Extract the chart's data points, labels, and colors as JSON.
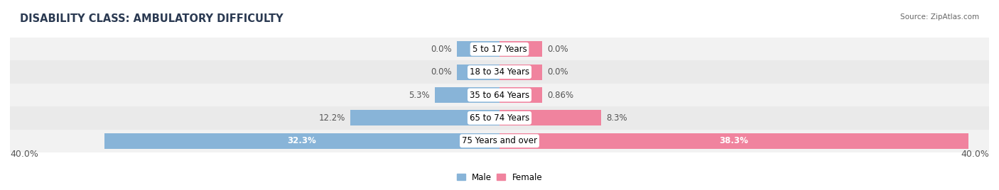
{
  "title": "DISABILITY CLASS: AMBULATORY DIFFICULTY",
  "source": "Source: ZipAtlas.com",
  "categories": [
    "5 to 17 Years",
    "18 to 34 Years",
    "35 to 64 Years",
    "65 to 74 Years",
    "75 Years and over"
  ],
  "male_values": [
    0.0,
    0.0,
    5.3,
    12.2,
    32.3
  ],
  "female_values": [
    0.0,
    0.0,
    0.86,
    8.3,
    38.3
  ],
  "male_labels": [
    "0.0%",
    "0.0%",
    "5.3%",
    "12.2%",
    "32.3%"
  ],
  "female_labels": [
    "0.0%",
    "0.0%",
    "0.86%",
    "8.3%",
    "38.3%"
  ],
  "male_color": "#88b4d8",
  "female_color": "#f0839e",
  "row_bg_colors": [
    "#f2f2f2",
    "#eaeaea",
    "#f2f2f2",
    "#eaeaea",
    "#f2f2f2"
  ],
  "max_val": 40.0,
  "min_bar_display": 3.5,
  "axis_label_left": "40.0%",
  "axis_label_right": "40.0%",
  "legend_male": "Male",
  "legend_female": "Female",
  "title_fontsize": 10.5,
  "label_fontsize": 8.5,
  "category_fontsize": 8.5,
  "source_fontsize": 7.5,
  "axis_fontsize": 9,
  "title_color": "#2b3a52",
  "source_color": "#666666",
  "label_color_dark": "#555555",
  "label_color_white": "#ffffff"
}
